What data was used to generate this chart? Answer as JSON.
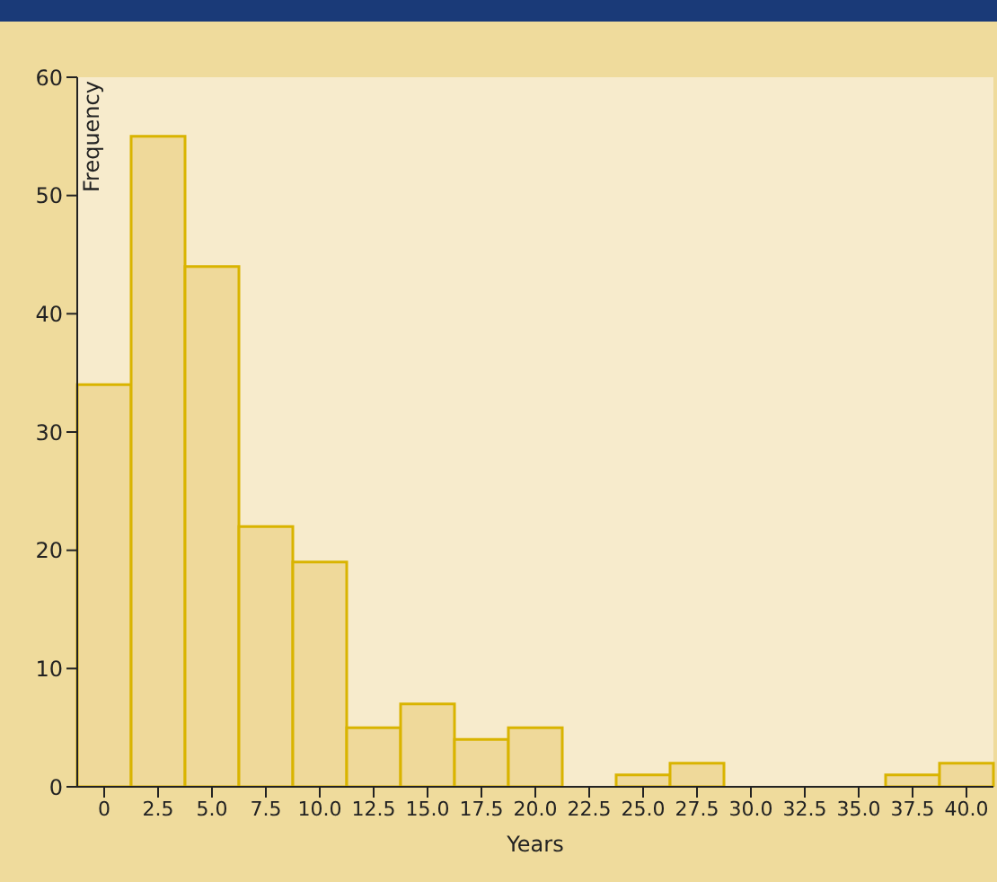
{
  "chart_data": {
    "type": "bar",
    "xlabel": "Years",
    "ylabel": "Frequency",
    "categories": [
      "0",
      "2.5",
      "5.0",
      "7.5",
      "10.0",
      "12.5",
      "15.0",
      "17.5",
      "20.0",
      "22.5",
      "25.0",
      "27.5",
      "30.0",
      "32.5",
      "35.0",
      "37.5",
      "40.0"
    ],
    "values": [
      34,
      55,
      44,
      22,
      19,
      5,
      7,
      4,
      5,
      0,
      1,
      2,
      0,
      0,
      0,
      1,
      2
    ],
    "color": "#efd99a",
    "ylim": [
      0,
      60
    ],
    "yticks": [
      0,
      10,
      20,
      30,
      40,
      50,
      60
    ]
  }
}
